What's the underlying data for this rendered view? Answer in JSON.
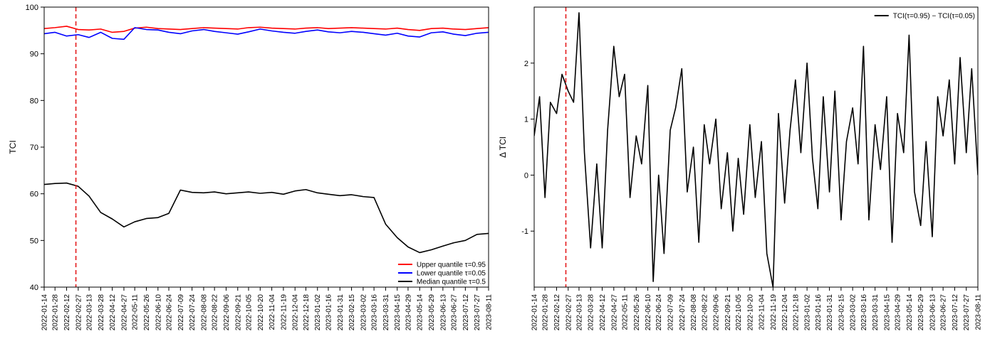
{
  "chart_data": [
    {
      "type": "line",
      "ylabel": "TCI",
      "xlabel": "",
      "ylim": [
        40,
        100
      ],
      "yticks": [
        40,
        50,
        60,
        70,
        80,
        90,
        100
      ],
      "x_dates": [
        "2022-01-14",
        "2022-01-28",
        "2022-02-12",
        "2022-02-27",
        "2022-03-13",
        "2022-03-28",
        "2022-04-12",
        "2022-04-27",
        "2022-05-11",
        "2022-05-26",
        "2022-06-10",
        "2022-06-24",
        "2022-07-09",
        "2022-07-24",
        "2022-08-08",
        "2022-08-22",
        "2022-09-06",
        "2022-09-21",
        "2022-10-05",
        "2022-10-20",
        "2022-11-04",
        "2022-11-19",
        "2022-12-04",
        "2022-12-18",
        "2023-01-02",
        "2023-01-16",
        "2023-01-31",
        "2023-02-15",
        "2023-03-02",
        "2023-03-16",
        "2023-03-31",
        "2023-04-15",
        "2023-04-29",
        "2023-05-14",
        "2023-05-29",
        "2023-06-13",
        "2023-06-27",
        "2023-07-12",
        "2023-07-27",
        "2023-08-11"
      ],
      "xlim": [
        "2022-01-14",
        "2023-08-11"
      ],
      "vline": {
        "date": "2022-02-24",
        "color": "#e41a1c",
        "style": "dashed"
      },
      "legend_position": "bottom-right",
      "series": [
        {
          "name": "Upper quantile τ=0.95",
          "color": "#ff0000",
          "points": [
            [
              "2022-01-14",
              95.4
            ],
            [
              "2022-01-28",
              95.6
            ],
            [
              "2022-02-12",
              95.9
            ],
            [
              "2022-02-27",
              95.2
            ],
            [
              "2022-03-13",
              95.1
            ],
            [
              "2022-03-28",
              95.3
            ],
            [
              "2022-04-12",
              94.6
            ],
            [
              "2022-04-27",
              94.8
            ],
            [
              "2022-05-11",
              95.5
            ],
            [
              "2022-05-26",
              95.7
            ],
            [
              "2022-06-10",
              95.4
            ],
            [
              "2022-06-24",
              95.3
            ],
            [
              "2022-07-09",
              95.2
            ],
            [
              "2022-07-24",
              95.4
            ],
            [
              "2022-08-08",
              95.6
            ],
            [
              "2022-08-22",
              95.5
            ],
            [
              "2022-09-06",
              95.4
            ],
            [
              "2022-09-21",
              95.3
            ],
            [
              "2022-10-05",
              95.6
            ],
            [
              "2022-10-20",
              95.7
            ],
            [
              "2022-11-04",
              95.5
            ],
            [
              "2022-11-19",
              95.4
            ],
            [
              "2022-12-04",
              95.3
            ],
            [
              "2022-12-18",
              95.5
            ],
            [
              "2023-01-02",
              95.6
            ],
            [
              "2023-01-16",
              95.4
            ],
            [
              "2023-01-31",
              95.5
            ],
            [
              "2023-02-15",
              95.6
            ],
            [
              "2023-03-02",
              95.5
            ],
            [
              "2023-03-16",
              95.4
            ],
            [
              "2023-03-31",
              95.3
            ],
            [
              "2023-04-15",
              95.5
            ],
            [
              "2023-04-29",
              95.2
            ],
            [
              "2023-05-14",
              95.0
            ],
            [
              "2023-05-29",
              95.4
            ],
            [
              "2023-06-13",
              95.5
            ],
            [
              "2023-06-27",
              95.3
            ],
            [
              "2023-07-12",
              95.2
            ],
            [
              "2023-07-27",
              95.4
            ],
            [
              "2023-08-11",
              95.6
            ]
          ]
        },
        {
          "name": "Lower quantile τ=0.05",
          "color": "#0000ff",
          "points": [
            [
              "2022-01-14",
              94.3
            ],
            [
              "2022-01-28",
              94.6
            ],
            [
              "2022-02-12",
              93.8
            ],
            [
              "2022-02-27",
              94.1
            ],
            [
              "2022-03-13",
              93.5
            ],
            [
              "2022-03-28",
              94.6
            ],
            [
              "2022-04-12",
              93.3
            ],
            [
              "2022-04-27",
              93.1
            ],
            [
              "2022-05-11",
              95.6
            ],
            [
              "2022-05-26",
              95.2
            ],
            [
              "2022-06-10",
              95.1
            ],
            [
              "2022-06-24",
              94.6
            ],
            [
              "2022-07-09",
              94.3
            ],
            [
              "2022-07-24",
              94.9
            ],
            [
              "2022-08-08",
              95.2
            ],
            [
              "2022-08-22",
              94.8
            ],
            [
              "2022-09-06",
              94.5
            ],
            [
              "2022-09-21",
              94.2
            ],
            [
              "2022-10-05",
              94.7
            ],
            [
              "2022-10-20",
              95.3
            ],
            [
              "2022-11-04",
              94.9
            ],
            [
              "2022-11-19",
              94.6
            ],
            [
              "2022-12-04",
              94.4
            ],
            [
              "2022-12-18",
              94.8
            ],
            [
              "2023-01-02",
              95.1
            ],
            [
              "2023-01-16",
              94.7
            ],
            [
              "2023-01-31",
              94.5
            ],
            [
              "2023-02-15",
              94.8
            ],
            [
              "2023-03-02",
              94.6
            ],
            [
              "2023-03-16",
              94.3
            ],
            [
              "2023-03-31",
              94.0
            ],
            [
              "2023-04-15",
              94.4
            ],
            [
              "2023-04-29",
              93.8
            ],
            [
              "2023-05-14",
              93.6
            ],
            [
              "2023-05-29",
              94.5
            ],
            [
              "2023-06-13",
              94.7
            ],
            [
              "2023-06-27",
              94.2
            ],
            [
              "2023-07-12",
              93.9
            ],
            [
              "2023-07-27",
              94.4
            ],
            [
              "2023-08-11",
              94.6
            ]
          ]
        },
        {
          "name": "Median quantile τ=0.5",
          "color": "#000000",
          "points": [
            [
              "2022-01-14",
              62.0
            ],
            [
              "2022-01-28",
              62.2
            ],
            [
              "2022-02-12",
              62.3
            ],
            [
              "2022-02-27",
              61.6
            ],
            [
              "2022-03-13",
              59.5
            ],
            [
              "2022-03-28",
              56.0
            ],
            [
              "2022-04-12",
              54.6
            ],
            [
              "2022-04-27",
              52.9
            ],
            [
              "2022-05-11",
              54.0
            ],
            [
              "2022-05-26",
              54.7
            ],
            [
              "2022-06-10",
              54.9
            ],
            [
              "2022-06-24",
              55.8
            ],
            [
              "2022-07-09",
              60.8
            ],
            [
              "2022-07-24",
              60.3
            ],
            [
              "2022-08-08",
              60.2
            ],
            [
              "2022-08-22",
              60.4
            ],
            [
              "2022-09-06",
              60.0
            ],
            [
              "2022-09-21",
              60.2
            ],
            [
              "2022-10-05",
              60.4
            ],
            [
              "2022-10-20",
              60.1
            ],
            [
              "2022-11-04",
              60.3
            ],
            [
              "2022-11-19",
              59.9
            ],
            [
              "2022-12-04",
              60.6
            ],
            [
              "2022-12-18",
              60.9
            ],
            [
              "2023-01-02",
              60.2
            ],
            [
              "2023-01-16",
              59.9
            ],
            [
              "2023-01-31",
              59.6
            ],
            [
              "2023-02-15",
              59.8
            ],
            [
              "2023-03-02",
              59.4
            ],
            [
              "2023-03-16",
              59.2
            ],
            [
              "2023-03-31",
              53.5
            ],
            [
              "2023-04-15",
              50.6
            ],
            [
              "2023-04-29",
              48.6
            ],
            [
              "2023-05-14",
              47.4
            ],
            [
              "2023-05-29",
              48.0
            ],
            [
              "2023-06-13",
              48.8
            ],
            [
              "2023-06-27",
              49.5
            ],
            [
              "2023-07-12",
              50.0
            ],
            [
              "2023-07-27",
              51.3
            ],
            [
              "2023-08-11",
              51.5
            ]
          ]
        }
      ]
    },
    {
      "type": "line",
      "ylabel": "Δ TCI",
      "xlabel": "",
      "ylim": [
        -2,
        3
      ],
      "yticks": [
        -1,
        0,
        1,
        2
      ],
      "x_dates": [
        "2022-01-14",
        "2022-01-28",
        "2022-02-12",
        "2022-02-27",
        "2022-03-13",
        "2022-03-28",
        "2022-04-12",
        "2022-04-27",
        "2022-05-11",
        "2022-05-26",
        "2022-06-10",
        "2022-06-24",
        "2022-07-09",
        "2022-07-24",
        "2022-08-08",
        "2022-08-22",
        "2022-09-06",
        "2022-09-21",
        "2022-10-05",
        "2022-10-20",
        "2022-11-04",
        "2022-11-19",
        "2022-12-04",
        "2022-12-18",
        "2023-01-02",
        "2023-01-16",
        "2023-01-31",
        "2023-02-15",
        "2023-03-02",
        "2023-03-16",
        "2023-03-31",
        "2023-04-15",
        "2023-04-29",
        "2023-05-14",
        "2023-05-29",
        "2023-06-13",
        "2023-06-27",
        "2023-07-12",
        "2023-07-27",
        "2023-08-11"
      ],
      "xlim": [
        "2022-01-14",
        "2023-08-11"
      ],
      "vline": {
        "date": "2022-02-24",
        "color": "#e41a1c",
        "style": "dashed"
      },
      "legend_position": "top-right",
      "series": [
        {
          "name": "TCI(τ=0.95) − TCI(τ=0.05)",
          "color": "#000000",
          "points": [
            [
              "2022-01-14",
              0.7
            ],
            [
              "2022-01-21",
              1.4
            ],
            [
              "2022-01-28",
              -0.4
            ],
            [
              "2022-02-04",
              1.3
            ],
            [
              "2022-02-12",
              1.1
            ],
            [
              "2022-02-19",
              1.8
            ],
            [
              "2022-02-27",
              1.5
            ],
            [
              "2022-03-06",
              1.3
            ],
            [
              "2022-03-13",
              2.9
            ],
            [
              "2022-03-20",
              0.4
            ],
            [
              "2022-03-28",
              -1.3
            ],
            [
              "2022-04-05",
              0.2
            ],
            [
              "2022-04-12",
              -1.3
            ],
            [
              "2022-04-19",
              0.8
            ],
            [
              "2022-04-27",
              2.3
            ],
            [
              "2022-05-04",
              1.4
            ],
            [
              "2022-05-11",
              1.8
            ],
            [
              "2022-05-18",
              -0.4
            ],
            [
              "2022-05-26",
              0.7
            ],
            [
              "2022-06-02",
              0.2
            ],
            [
              "2022-06-10",
              1.6
            ],
            [
              "2022-06-17",
              -1.9
            ],
            [
              "2022-06-24",
              0.0
            ],
            [
              "2022-07-01",
              -1.4
            ],
            [
              "2022-07-09",
              0.8
            ],
            [
              "2022-07-16",
              1.2
            ],
            [
              "2022-07-24",
              1.9
            ],
            [
              "2022-07-31",
              -0.3
            ],
            [
              "2022-08-08",
              0.5
            ],
            [
              "2022-08-15",
              -1.2
            ],
            [
              "2022-08-22",
              0.9
            ],
            [
              "2022-08-29",
              0.2
            ],
            [
              "2022-09-06",
              1.0
            ],
            [
              "2022-09-13",
              -0.6
            ],
            [
              "2022-09-21",
              0.4
            ],
            [
              "2022-09-28",
              -1.0
            ],
            [
              "2022-10-05",
              0.3
            ],
            [
              "2022-10-12",
              -0.7
            ],
            [
              "2022-10-20",
              0.9
            ],
            [
              "2022-10-27",
              -0.4
            ],
            [
              "2022-11-04",
              0.6
            ],
            [
              "2022-11-11",
              -1.4
            ],
            [
              "2022-11-19",
              -2.0
            ],
            [
              "2022-11-26",
              1.1
            ],
            [
              "2022-12-04",
              -0.5
            ],
            [
              "2022-12-11",
              0.8
            ],
            [
              "2022-12-18",
              1.7
            ],
            [
              "2022-12-25",
              0.4
            ],
            [
              "2023-01-02",
              2.0
            ],
            [
              "2023-01-09",
              0.3
            ],
            [
              "2023-01-16",
              -0.6
            ],
            [
              "2023-01-23",
              1.4
            ],
            [
              "2023-01-31",
              -0.3
            ],
            [
              "2023-02-07",
              1.5
            ],
            [
              "2023-02-15",
              -0.8
            ],
            [
              "2023-02-22",
              0.6
            ],
            [
              "2023-03-02",
              1.2
            ],
            [
              "2023-03-09",
              0.2
            ],
            [
              "2023-03-16",
              2.3
            ],
            [
              "2023-03-23",
              -0.8
            ],
            [
              "2023-03-31",
              0.9
            ],
            [
              "2023-04-07",
              0.1
            ],
            [
              "2023-04-15",
              1.4
            ],
            [
              "2023-04-22",
              -1.2
            ],
            [
              "2023-04-29",
              1.1
            ],
            [
              "2023-05-07",
              0.4
            ],
            [
              "2023-05-14",
              2.5
            ],
            [
              "2023-05-21",
              -0.3
            ],
            [
              "2023-05-29",
              -0.9
            ],
            [
              "2023-06-05",
              0.6
            ],
            [
              "2023-06-13",
              -1.1
            ],
            [
              "2023-06-20",
              1.4
            ],
            [
              "2023-06-27",
              0.7
            ],
            [
              "2023-07-05",
              1.7
            ],
            [
              "2023-07-12",
              0.2
            ],
            [
              "2023-07-19",
              2.1
            ],
            [
              "2023-07-27",
              0.4
            ],
            [
              "2023-08-03",
              1.9
            ],
            [
              "2023-08-11",
              0.0
            ]
          ]
        }
      ]
    }
  ]
}
